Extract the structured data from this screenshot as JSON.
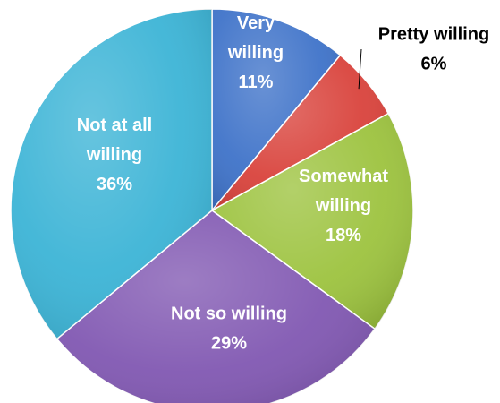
{
  "chart_data": {
    "type": "pie",
    "title": "",
    "start_angle_deg": 0,
    "direction": "clockwise",
    "slices": [
      {
        "name": "Very willing",
        "label_lines": [
          "Very",
          "willing",
          "11%"
        ],
        "value": 11,
        "color": "#3f73c9",
        "label_color": "#ffffff"
      },
      {
        "name": "Pretty willing",
        "label_lines": [
          "Pretty willing",
          "6%"
        ],
        "value": 6,
        "color": "#d9433c",
        "label_color": "#000000",
        "outside_label": true
      },
      {
        "name": "Somewhat willing",
        "label_lines": [
          "Somewhat",
          "willing",
          "18%"
        ],
        "value": 18,
        "color": "#9dc33f",
        "label_color": "#ffffff"
      },
      {
        "name": "Not so willing",
        "label_lines": [
          "Not so willing",
          "29%"
        ],
        "value": 29,
        "color": "#8158b2",
        "label_color": "#ffffff"
      },
      {
        "name": "Not at all willing",
        "label_lines": [
          "Not at all",
          "willing",
          "36%"
        ],
        "value": 36,
        "color": "#3cb4d6",
        "label_color": "#ffffff"
      }
    ],
    "legend": "none"
  }
}
